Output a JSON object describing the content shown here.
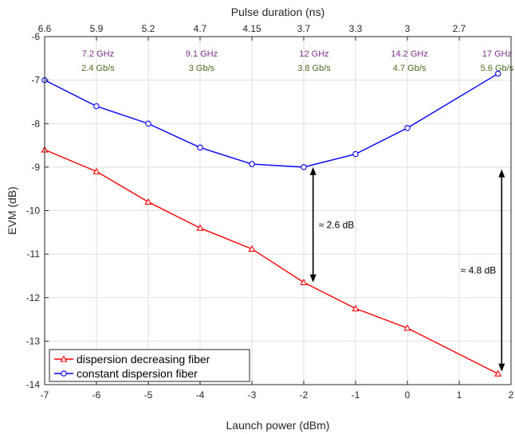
{
  "chart_data": {
    "type": "line",
    "xlabel": "Launch power (dBm)",
    "ylabel": "EVM (dB)",
    "top_xlabel": "Pulse duration (ns)",
    "xlim": [
      -7,
      2
    ],
    "ylim": [
      -14,
      -6
    ],
    "xticks": [
      "-7",
      "-6",
      "-5",
      "-4",
      "-3",
      "-2",
      "-1",
      "0",
      "1",
      "2"
    ],
    "yticks": [
      "-6",
      "-7",
      "-8",
      "-9",
      "-10",
      "-11",
      "-12",
      "-13",
      "-14"
    ],
    "top_ticks": [
      "6.6",
      "5.9",
      "5.2",
      "4.7",
      "4.15",
      "3.7",
      "3.3",
      "3",
      "2.7"
    ],
    "grid": true,
    "legend_position": "bottom-left",
    "series": [
      {
        "name": "dispersion decreasing fiber",
        "color": "#FF0000",
        "marker": "triangle",
        "x": [
          -7,
          -6,
          -5,
          -4,
          -3,
          -2,
          -1,
          0,
          1.75
        ],
        "y": [
          -8.6,
          -9.1,
          -9.8,
          -10.4,
          -10.88,
          -11.65,
          -12.25,
          -12.7,
          -13.75
        ]
      },
      {
        "name": "constant dispersion fiber",
        "color": "#0000FF",
        "marker": "circle",
        "x": [
          -7,
          -6,
          -5,
          -4,
          -3,
          -2,
          -1,
          0,
          1.75
        ],
        "y": [
          -7.0,
          -7.6,
          -8.0,
          -8.55,
          -8.93,
          -9.0,
          -8.7,
          -8.1,
          -6.85
        ]
      }
    ],
    "bandwidth_labels": [
      {
        "x": -5.97,
        "text": "7.2 GHz"
      },
      {
        "x": -3.97,
        "text": "9.1 GHz"
      },
      {
        "x": -1.8,
        "text": "12 GHz"
      },
      {
        "x": 0.04,
        "text": "14.2 GHz"
      },
      {
        "x": 1.73,
        "text": "17 GHz"
      }
    ],
    "rate_labels": [
      {
        "x": -5.97,
        "text": "2.4 Gb/s"
      },
      {
        "x": -3.97,
        "text": "3 Gb/s"
      },
      {
        "x": -1.8,
        "text": "3.8 Gb/s"
      },
      {
        "x": 0.04,
        "text": "4.7 Gb/s"
      },
      {
        "x": 1.73,
        "text": "5.6 Gb/s"
      }
    ],
    "annotations": [
      {
        "x": -1.82,
        "y_top": -9.0,
        "y_bottom": -11.65,
        "label": "≈ 2.6 dB",
        "label_side": "right"
      },
      {
        "x": 1.82,
        "y_top": -9.05,
        "y_bottom": -13.7,
        "label": "≈ 4.8 dB",
        "label_side": "left"
      }
    ]
  }
}
